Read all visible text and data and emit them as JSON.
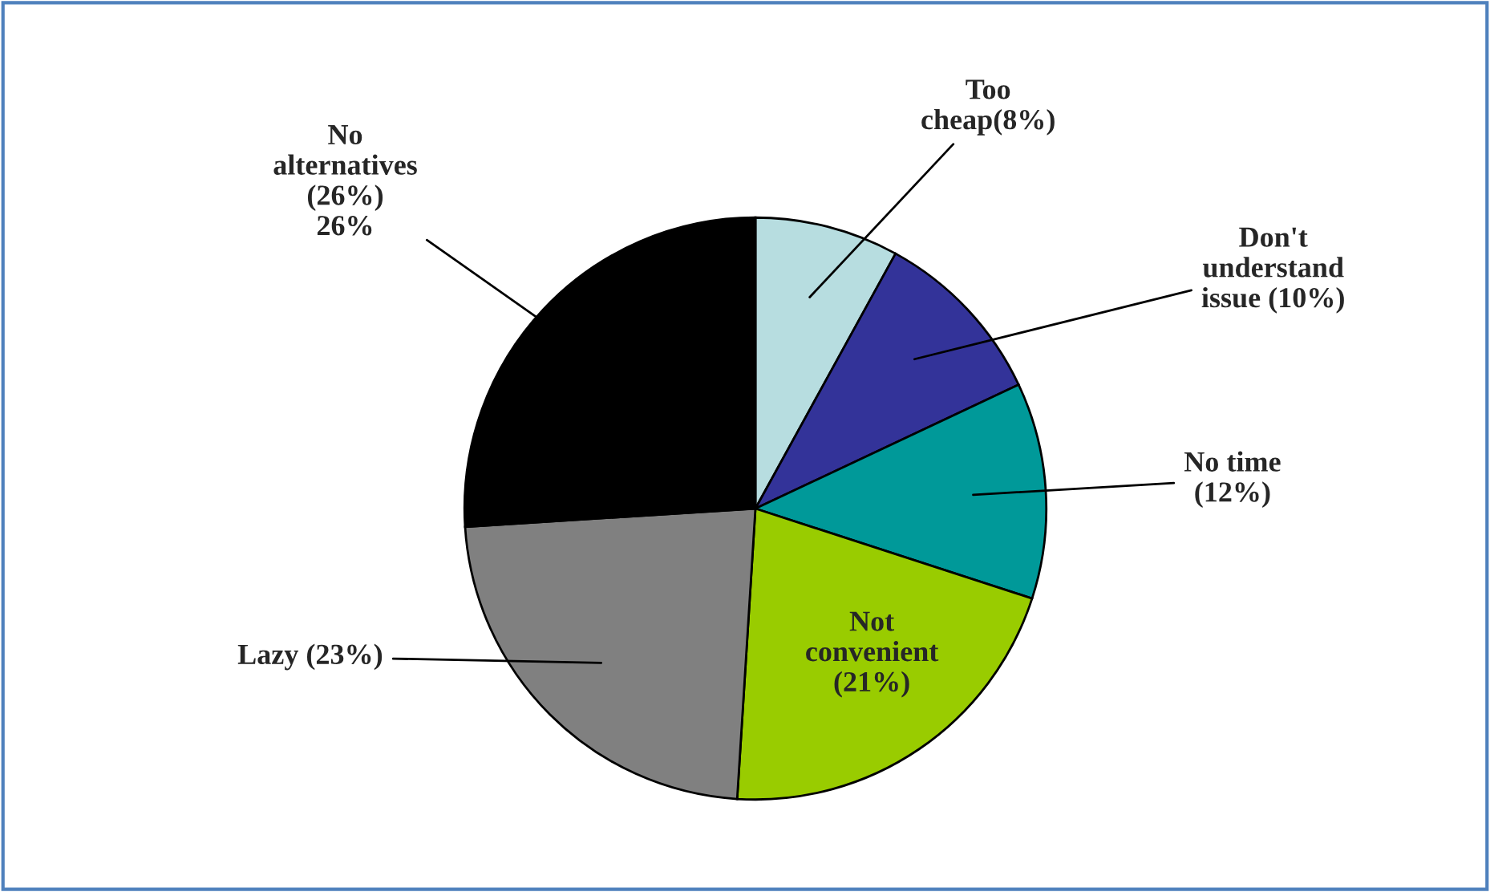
{
  "chart_data": {
    "type": "pie",
    "categories": [
      "Too\ncheap(8%)",
      "Don't\nunderstand\nissue (10%)",
      "No time\n(12%)",
      "Not\nconvenient\n(21%)",
      "Lazy (23%)",
      "No\nalternatives\n(26%)\n26%"
    ],
    "values": [
      8,
      10,
      12,
      21,
      23,
      26
    ],
    "colors": [
      "#b7dde0",
      "#333399",
      "#009999",
      "#99cc00",
      "#808080",
      "#000000"
    ],
    "legend": false
  }
}
